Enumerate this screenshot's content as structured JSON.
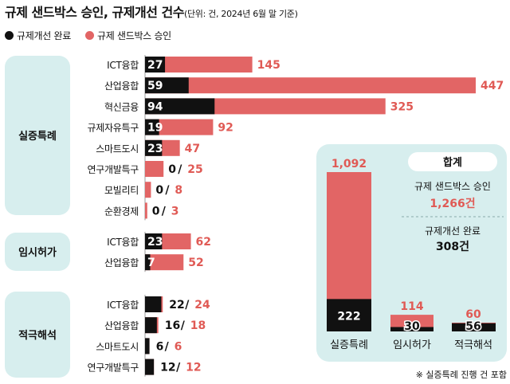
{
  "title": {
    "main": "규제 샌드박스 승인, 규제개선 건수",
    "note": "(단위: 건, 2024년 6월 말 기준)"
  },
  "legend": {
    "improved": "규제개선 완료",
    "approved": "규제 샌드박스 승인"
  },
  "colors": {
    "improved": "#111111",
    "approved": "#e26565",
    "panel": "#d7eeee",
    "approved_text": "#e05a55"
  },
  "summary": {
    "header": "합계",
    "approved_label": "규제 샌드박스 승인",
    "approved_value": "1,266건",
    "improved_label": "규제개선 완료",
    "improved_value": "308건"
  },
  "footnote": "※ 실증특례 진행 건 포함",
  "chart_data": [
    {
      "type": "bar",
      "orientation": "horizontal",
      "groups": [
        {
          "name": "실증특례",
          "categories": [
            "ICT융합",
            "산업융합",
            "혁신금융",
            "규제자유특구",
            "스마트도시",
            "연구개발특구",
            "모빌리티",
            "순환경제"
          ],
          "improved": [
            27,
            59,
            94,
            19,
            23,
            0,
            0,
            0
          ],
          "approved": [
            145,
            447,
            325,
            92,
            47,
            25,
            8,
            3
          ],
          "label_style": "outside"
        },
        {
          "name": "임시허가",
          "categories": [
            "ICT융합",
            "산업융합"
          ],
          "improved": [
            23,
            7
          ],
          "approved": [
            62,
            52
          ],
          "label_style": "outside"
        },
        {
          "name": "적극해석",
          "categories": [
            "ICT융합",
            "산업융합",
            "스마트도시",
            "연구개발특구"
          ],
          "improved": [
            22,
            16,
            6,
            12
          ],
          "approved": [
            24,
            18,
            6,
            12
          ],
          "label_style": "pair"
        }
      ]
    },
    {
      "type": "bar",
      "orientation": "vertical",
      "categories": [
        "실증특례",
        "임시허가",
        "적극해석"
      ],
      "series": [
        {
          "name": "규제 샌드박스 승인",
          "values": [
            1092,
            114,
            60
          ]
        },
        {
          "name": "규제개선 완료",
          "values": [
            222,
            30,
            56
          ]
        }
      ],
      "value_labels": {
        "approved": [
          "1,092",
          "114",
          "60"
        ],
        "improved": [
          "222",
          "30",
          "56"
        ]
      }
    }
  ]
}
